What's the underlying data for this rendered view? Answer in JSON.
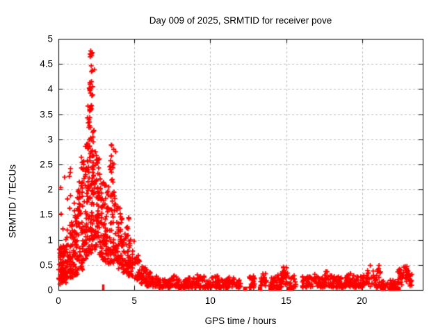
{
  "chart_data": {
    "type": "scatter",
    "title": "Day 009 of 2025, SRMTID for receiver pove",
    "xlabel": "GPS time / hours",
    "ylabel": "SRMTID / TECUs",
    "xlim": [
      0,
      24
    ],
    "ylim": [
      0,
      5
    ],
    "xticks": {
      "values": [
        0,
        5,
        10,
        15,
        20
      ],
      "labels": [
        "0",
        "5",
        "10",
        "15",
        "20"
      ]
    },
    "yticks": {
      "values": [
        0,
        0.5,
        1,
        1.5,
        2,
        2.5,
        3,
        3.5,
        4,
        4.5,
        5
      ],
      "labels": [
        "0",
        "0.5",
        "1",
        "1.5",
        "2",
        "2.5",
        "3",
        "3.5",
        "4",
        "4.5",
        "5"
      ]
    },
    "grid": {
      "show": true,
      "color": "#b8b8b8",
      "dash": [
        3,
        3
      ]
    },
    "frame_color": "#000000",
    "tick_length": 6,
    "marker": {
      "shape": "plus",
      "color": "#ff0000",
      "size": 7,
      "line_width": 1.8
    },
    "series_name": "SRMTID",
    "generation": {
      "seed": 20250109,
      "comment": "scatter approximated by uniform bins [x0,x1,count,ylo,yhi,skew] and gaussian clusters [cx,cy,count,sx,sy]",
      "bins": [
        [
          0.0,
          0.3,
          34,
          0.18,
          0.95,
          1.2
        ],
        [
          0.1,
          0.55,
          22,
          0.1,
          0.55,
          1.1
        ],
        [
          0.15,
          0.7,
          6,
          1.1,
          2.3,
          1.0
        ],
        [
          0.3,
          0.7,
          40,
          0.22,
          1.05,
          1.3
        ],
        [
          0.7,
          1.0,
          44,
          0.25,
          1.35,
          1.4
        ],
        [
          0.7,
          0.9,
          3,
          1.6,
          2.45,
          1.0
        ],
        [
          1.0,
          1.3,
          46,
          0.3,
          1.75,
          1.4
        ],
        [
          1.3,
          1.6,
          46,
          0.4,
          2.25,
          1.45
        ],
        [
          1.6,
          1.9,
          50,
          0.5,
          2.65,
          1.4
        ],
        [
          1.9,
          2.2,
          55,
          0.7,
          2.95,
          1.25
        ],
        [
          2.2,
          2.5,
          50,
          0.8,
          2.85,
          1.25
        ],
        [
          2.5,
          2.8,
          46,
          0.7,
          2.65,
          1.3
        ],
        [
          2.8,
          3.1,
          46,
          0.6,
          2.25,
          1.3
        ],
        [
          3.1,
          3.45,
          44,
          0.5,
          2.1,
          1.3
        ],
        [
          3.45,
          3.8,
          40,
          0.5,
          2.0,
          1.35
        ],
        [
          3.8,
          4.2,
          40,
          0.4,
          1.7,
          1.45
        ],
        [
          4.2,
          4.6,
          36,
          0.35,
          1.25,
          1.4
        ],
        [
          4.6,
          5.0,
          34,
          0.28,
          1.0,
          1.45
        ],
        [
          5.0,
          5.4,
          30,
          0.2,
          0.75,
          1.4
        ],
        [
          5.4,
          5.8,
          28,
          0.12,
          0.52,
          1.3
        ],
        [
          5.8,
          6.2,
          26,
          0.07,
          0.36,
          1.25
        ],
        [
          6.2,
          6.6,
          24,
          0.05,
          0.3,
          1.2
        ],
        [
          6.6,
          7.2,
          30,
          0.04,
          0.22,
          1.3
        ],
        [
          7.2,
          7.8,
          30,
          0.04,
          0.29,
          1.5
        ],
        [
          7.8,
          8.4,
          28,
          0.03,
          0.22,
          1.3
        ],
        [
          8.4,
          9.0,
          28,
          0.04,
          0.26,
          1.4
        ],
        [
          9.0,
          9.6,
          28,
          0.04,
          0.31,
          1.5
        ],
        [
          9.6,
          10.1,
          26,
          0.04,
          0.22,
          1.3
        ],
        [
          10.1,
          10.6,
          26,
          0.05,
          0.29,
          1.5
        ],
        [
          10.6,
          11.1,
          26,
          0.04,
          0.21,
          1.3
        ],
        [
          11.1,
          11.6,
          26,
          0.05,
          0.26,
          1.4
        ],
        [
          11.6,
          12.0,
          20,
          0.04,
          0.2,
          1.3
        ],
        [
          12.55,
          12.95,
          24,
          0.04,
          0.28,
          1.4
        ],
        [
          13.3,
          13.7,
          20,
          0.07,
          0.34,
          1.4
        ],
        [
          13.95,
          14.45,
          32,
          0.04,
          0.3,
          1.3
        ],
        [
          14.45,
          14.8,
          26,
          0.05,
          0.38,
          1.2
        ],
        [
          14.8,
          15.1,
          20,
          0.1,
          0.47,
          1.1
        ],
        [
          15.1,
          15.65,
          18,
          0.05,
          0.3,
          1.4
        ],
        [
          16.0,
          16.5,
          26,
          0.05,
          0.27,
          1.4
        ],
        [
          16.5,
          17.0,
          26,
          0.06,
          0.34,
          1.5
        ],
        [
          17.0,
          17.5,
          26,
          0.05,
          0.27,
          1.4
        ],
        [
          17.5,
          18.0,
          26,
          0.06,
          0.37,
          1.5
        ],
        [
          18.0,
          18.5,
          26,
          0.05,
          0.3,
          1.4
        ],
        [
          18.5,
          19.0,
          26,
          0.04,
          0.26,
          1.4
        ],
        [
          19.0,
          19.5,
          26,
          0.06,
          0.33,
          1.5
        ],
        [
          19.5,
          20.0,
          26,
          0.05,
          0.28,
          1.4
        ],
        [
          20.0,
          20.5,
          28,
          0.06,
          0.42,
          1.3
        ],
        [
          20.5,
          21.25,
          34,
          0.05,
          0.5,
          1.3
        ],
        [
          21.25,
          21.8,
          18,
          0.03,
          0.18,
          1.3
        ],
        [
          21.8,
          22.35,
          18,
          0.03,
          0.2,
          1.3
        ],
        [
          22.35,
          22.75,
          22,
          0.1,
          0.42,
          1.2
        ],
        [
          22.75,
          23.05,
          18,
          0.12,
          0.47,
          1.15
        ],
        [
          23.05,
          23.3,
          14,
          0.08,
          0.33,
          1.2
        ]
      ],
      "clusters": [
        [
          2.15,
          4.67,
          7,
          0.07,
          0.05
        ],
        [
          2.22,
          4.4,
          4,
          0.09,
          0.05
        ],
        [
          2.1,
          4.05,
          10,
          0.07,
          0.09
        ],
        [
          2.17,
          3.88,
          4,
          0.06,
          0.04
        ],
        [
          2.1,
          3.6,
          8,
          0.07,
          0.06
        ],
        [
          2.05,
          3.33,
          7,
          0.08,
          0.05
        ],
        [
          2.2,
          3.06,
          8,
          0.14,
          0.09
        ],
        [
          1.9,
          2.86,
          6,
          0.1,
          0.08
        ],
        [
          2.55,
          2.56,
          6,
          0.1,
          0.09
        ],
        [
          3.55,
          2.65,
          9,
          0.09,
          0.18
        ],
        [
          3.48,
          2.3,
          7,
          0.07,
          0.12
        ],
        [
          1.5,
          2.48,
          4,
          0.07,
          0.08
        ],
        [
          0.78,
          2.4,
          2,
          0.04,
          0.04
        ],
        [
          1.32,
          1.98,
          5,
          0.09,
          0.09
        ],
        [
          4.6,
          1.35,
          4,
          0.08,
          0.07
        ]
      ],
      "low_squares": [
        12.3,
        13.28,
        13.97,
        14.1,
        14.42,
        14.56,
        15.18,
        15.3,
        21.32,
        21.44,
        21.82,
        21.92,
        22.02,
        22.12,
        22.3,
        22.42
      ],
      "low_square_y": 0.025,
      "low_square_size": 6,
      "low_ticks": [
        2.92,
        2.99,
        15.5
      ]
    }
  }
}
